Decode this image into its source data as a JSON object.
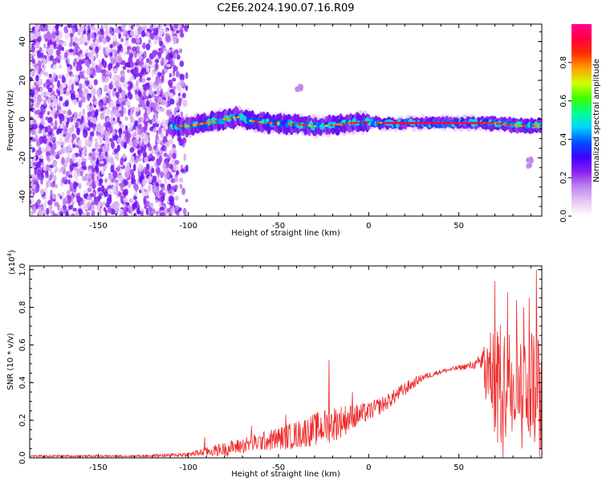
{
  "title": "C2E6.2024.190.07.16.R09",
  "chart_data": [
    {
      "type": "heatmap",
      "xlabel": "Height of straight line (km)",
      "ylabel": "Frequency (Hz)",
      "xlim": [
        -188,
        96
      ],
      "ylim": [
        -50,
        49
      ],
      "x_ticks": [
        -150,
        -100,
        -50,
        0,
        50
      ],
      "x_tick_labels": [
        "-150",
        "-100",
        "-50",
        "0",
        "50"
      ],
      "y_ticks": [
        -40,
        -20,
        0,
        20,
        40
      ],
      "y_tick_labels": [
        "-40",
        "-20",
        "0",
        "20",
        "40"
      ],
      "grid": false,
      "colorbar": {
        "label": "Normalized spectral amplitude",
        "range": [
          0,
          1
        ],
        "ticks": [
          0,
          0.2,
          0.4,
          0.6,
          0.8
        ],
        "tick_labels": [
          "0.0",
          "0.2",
          "0.4",
          "0.6",
          "0.8"
        ],
        "colormap": "rainbow"
      },
      "colormap_stops": [
        "#ffffff",
        "#e6c8f5",
        "#c084ee",
        "#8a1ff0",
        "#3c00ff",
        "#0050ff",
        "#00d2ff",
        "#00ff90",
        "#40ff00",
        "#d2ff00",
        "#ffa000",
        "#ff3000",
        "#ff0040",
        "#ff0090"
      ],
      "track": [
        {
          "x": -110,
          "f": -3.5
        },
        {
          "x": -100,
          "f": -3.5
        },
        {
          "x": -90,
          "f": -2
        },
        {
          "x": -80,
          "f": 0
        },
        {
          "x": -72,
          "f": 1
        },
        {
          "x": -65,
          "f": -1
        },
        {
          "x": -55,
          "f": -2
        },
        {
          "x": -45,
          "f": -2.5
        },
        {
          "x": -35,
          "f": -3
        },
        {
          "x": -28,
          "f": -4
        },
        {
          "x": -20,
          "f": -3
        },
        {
          "x": -10,
          "f": -2
        },
        {
          "x": 0,
          "f": -1.5
        },
        {
          "x": 10,
          "f": -2
        },
        {
          "x": 20,
          "f": -2
        },
        {
          "x": 30,
          "f": -2
        },
        {
          "x": 40,
          "f": -2
        },
        {
          "x": 50,
          "f": -2
        },
        {
          "x": 60,
          "f": -2
        },
        {
          "x": 66,
          "f": -2
        },
        {
          "x": 75,
          "f": -2.5
        },
        {
          "x": 85,
          "f": -3.5
        },
        {
          "x": 96,
          "f": -3.5
        }
      ],
      "noise_edge_km": -108,
      "features": [
        {
          "x": -38,
          "f": 16,
          "note_value": 0.15
        },
        {
          "x": 90,
          "f": -23,
          "note_value": 0.15
        }
      ]
    },
    {
      "type": "line",
      "xlabel": "Height of straight line (km)",
      "ylabel": "SNR (10 * v/v)",
      "y_scale_label": "(x10",
      "y_scale_exponent": "4",
      "y_scale_suffix": ")",
      "xlim": [
        -188,
        96
      ],
      "ylim": [
        0,
        1.02
      ],
      "x_ticks": [
        -150,
        -100,
        -50,
        0,
        50
      ],
      "x_tick_labels": [
        "-150",
        "-100",
        "-50",
        "0",
        "50"
      ],
      "y_ticks": [
        0,
        0.2,
        0.4,
        0.6,
        0.8,
        1.0
      ],
      "y_tick_labels": [
        "0.0",
        "0.2",
        "0.4",
        "0.6",
        "0.8",
        "1.0"
      ],
      "grid": false,
      "series": [
        {
          "color": "#ee2a2a",
          "envelope_x": [
            -188,
            -160,
            -130,
            -110,
            -100,
            -90,
            -80,
            -70,
            -60,
            -50,
            -40,
            -30,
            -20,
            -10,
            0,
            10,
            20,
            30,
            40,
            50,
            60,
            64,
            68,
            72,
            76,
            80,
            84,
            88,
            92,
            96
          ],
          "envelope_base": [
            0.01,
            0.01,
            0.01,
            0.015,
            0.02,
            0.035,
            0.05,
            0.07,
            0.09,
            0.11,
            0.13,
            0.16,
            0.19,
            0.22,
            0.25,
            0.3,
            0.37,
            0.43,
            0.46,
            0.48,
            0.5,
            0.52,
            0.48,
            0.5,
            0.45,
            0.5,
            0.45,
            0.45,
            0.45,
            0.45
          ],
          "envelope_spread": [
            0.01,
            0.01,
            0.01,
            0.015,
            0.02,
            0.04,
            0.06,
            0.07,
            0.08,
            0.1,
            0.12,
            0.14,
            0.16,
            0.12,
            0.08,
            0.07,
            0.06,
            0.03,
            0.02,
            0.02,
            0.04,
            0.18,
            0.35,
            0.4,
            0.4,
            0.4,
            0.4,
            0.42,
            0.45,
            0.55
          ],
          "peaks": [
            {
              "x": -91,
              "y": 0.11
            },
            {
              "x": -65,
              "y": 0.17
            },
            {
              "x": -46,
              "y": 0.23
            },
            {
              "x": -35,
              "y": 0.2
            },
            {
              "x": -22,
              "y": 0.52
            },
            {
              "x": -9,
              "y": 0.35
            },
            {
              "x": 3,
              "y": 0.3
            },
            {
              "x": 10,
              "y": 0.29
            },
            {
              "x": 63,
              "y": 0.56
            },
            {
              "x": 69,
              "y": 0.66
            },
            {
              "x": 70,
              "y": 0.94
            },
            {
              "x": 77,
              "y": 0.88
            },
            {
              "x": 82,
              "y": 0.84
            },
            {
              "x": 86,
              "y": 0.8
            },
            {
              "x": 89,
              "y": 0.85
            },
            {
              "x": 93,
              "y": 1.0
            }
          ]
        }
      ]
    }
  ]
}
